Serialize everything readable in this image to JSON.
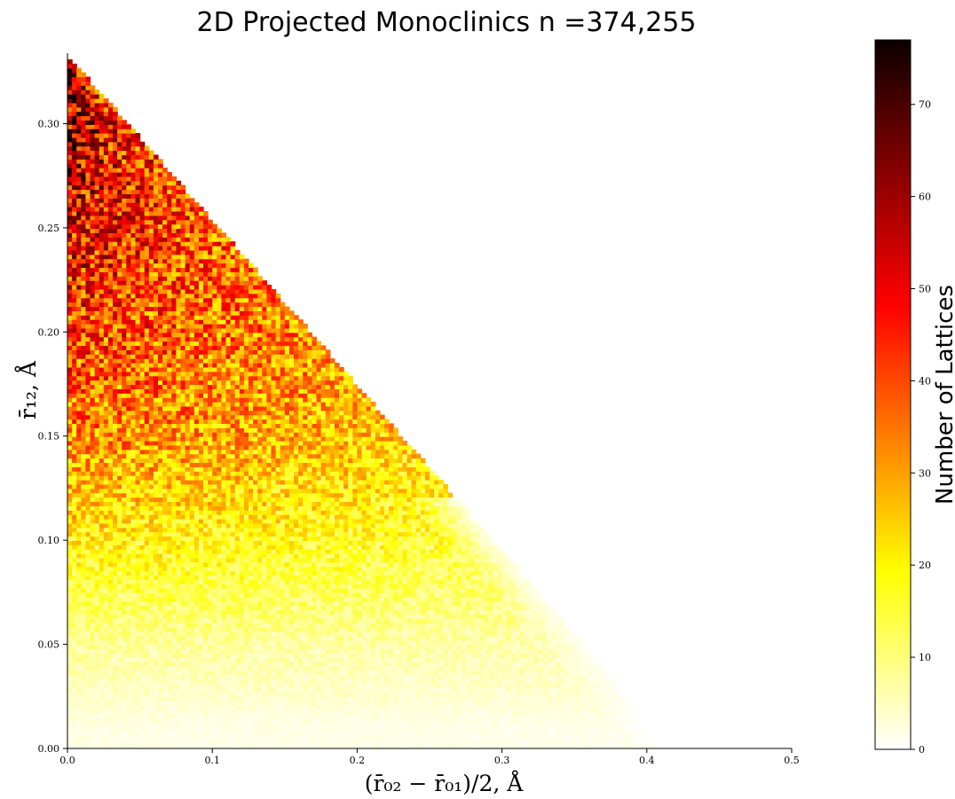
{
  "chart_data": {
    "type": "heatmap",
    "title": "2D Projected Monoclinics n =374,255",
    "xlabel": "(r̄₀₂ − r̄₀₁)/2, Å",
    "ylabel": "r̄₁₂, Å",
    "xlim": [
      0.0,
      0.5
    ],
    "ylim": [
      0.0,
      0.333
    ],
    "x_ticks": [
      "0.0",
      "0.1",
      "0.2",
      "0.3",
      "0.4",
      "0.5"
    ],
    "y_ticks": [
      "0.00",
      "0.05",
      "0.10",
      "0.15",
      "0.20",
      "0.25",
      "0.30"
    ],
    "colormap": "hot_r",
    "colorbar": {
      "label": "Number of Lattices",
      "range": [
        0,
        77
      ],
      "ticks": [
        "0",
        "10",
        "20",
        "30",
        "40",
        "50",
        "60",
        "70"
      ]
    },
    "region": {
      "description": "Populated triangular region bounded by x=0, y=0 and the line y = 0.333 - 0.8*x",
      "vertices": [
        [
          0.0,
          0.0
        ],
        [
          0.0,
          0.333
        ],
        [
          0.42,
          0.0
        ]
      ]
    },
    "density_profile": [
      {
        "y": 0.01,
        "count": 2
      },
      {
        "y": 0.05,
        "count": 8
      },
      {
        "y": 0.1,
        "count": 20
      },
      {
        "y": 0.15,
        "count": 33
      },
      {
        "y": 0.2,
        "count": 42
      },
      {
        "y": 0.25,
        "count": 49
      },
      {
        "y": 0.3,
        "count": 57
      },
      {
        "y": 0.33,
        "count": 62
      }
    ]
  }
}
